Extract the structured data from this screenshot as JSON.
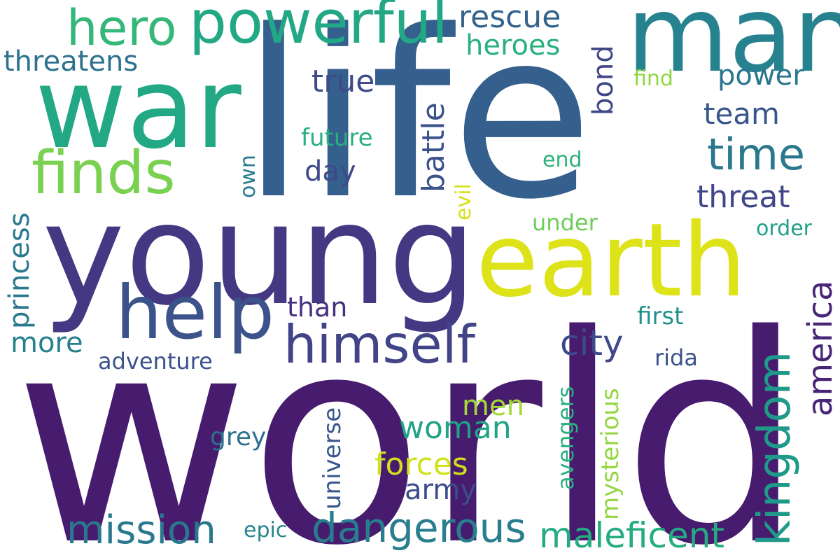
{
  "words": {
    "world": "world",
    "life": "life",
    "young": "young",
    "war": "war",
    "man": "man",
    "earth": "earth",
    "help": "help",
    "powerful": "powerful",
    "finds": "finds",
    "hero": "hero",
    "himself": "himself",
    "time": "time",
    "dangerous": "dangerous",
    "mission": "mission",
    "maleficent": "maleficent",
    "kingdom": "kingdom",
    "city": "city",
    "america": "america",
    "rescue": "rescue",
    "battle": "battle",
    "woman": "woman",
    "forces": "forces",
    "heroes": "heroes",
    "threatens": "threatens",
    "true": "true",
    "threat": "threat",
    "team": "team",
    "power": "power",
    "bond": "bond",
    "day": "day",
    "men": "men",
    "army": "army",
    "more": "more",
    "princess": "princess",
    "than": "than",
    "future": "future",
    "adventure": "adventure",
    "grey": "grey",
    "universe": "universe",
    "avengers": "avengers",
    "mysterious": "mysterious",
    "first": "first",
    "rida": "rida",
    "order": "order",
    "under": "under",
    "end": "end",
    "find": "find",
    "own": "own",
    "evil": "evil",
    "epic": "epic"
  }
}
